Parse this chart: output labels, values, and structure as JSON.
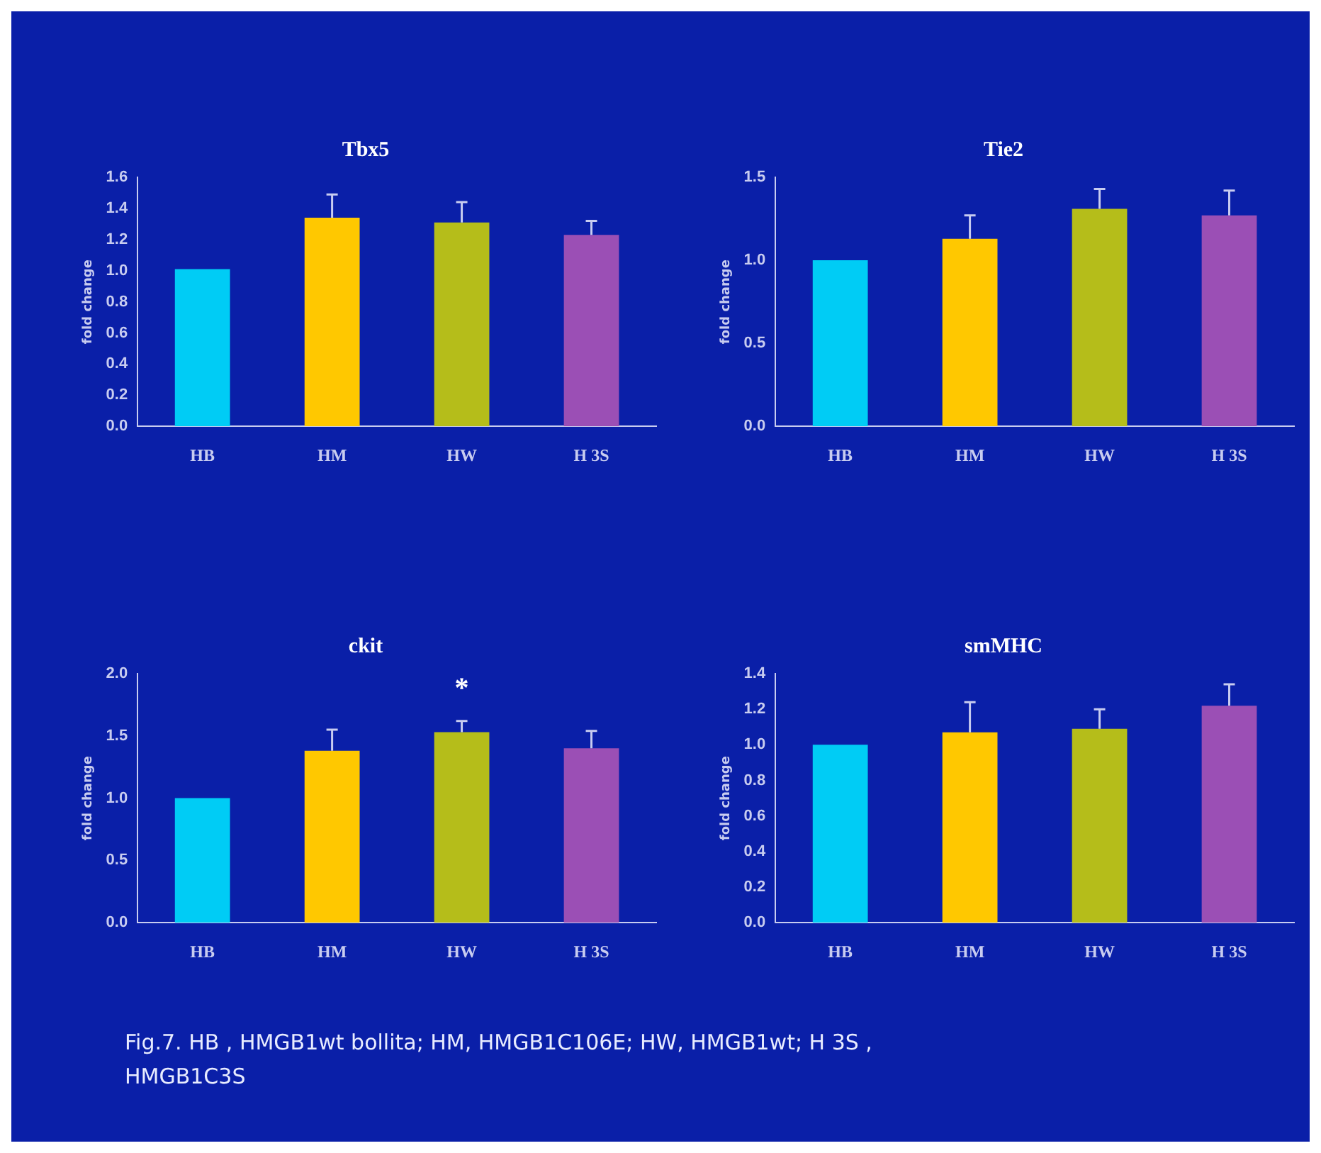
{
  "chart_data": [
    {
      "type": "bar",
      "title": "Tbx5",
      "ylabel": "fold change",
      "categories": [
        "HB",
        "HM",
        "HW",
        "H 3S"
      ],
      "values": [
        1.01,
        1.34,
        1.31,
        1.23
      ],
      "colors": [
        "#00ccf5",
        "#ffc800",
        "#b5bd1a",
        "#9b4fb5"
      ],
      "errors": [
        null,
        [
          1.34,
          1.49
        ],
        [
          1.31,
          1.44
        ],
        [
          1.23,
          1.32
        ]
      ],
      "ylim": [
        0,
        1.6
      ],
      "yticks": [
        {
          "value": 0,
          "label": "0.0"
        },
        0.2,
        0.4,
        0.6,
        0.8,
        {
          "value": 1,
          "label": "1.0"
        },
        1.2,
        1.4,
        1.6
      ],
      "grid": false,
      "legend": false
    },
    {
      "type": "bar",
      "title": "Tie2",
      "ylabel": "fold change",
      "categories": [
        "HB",
        "HM",
        "HW",
        "H 3S"
      ],
      "values": [
        1.0,
        1.13,
        1.31,
        1.27
      ],
      "colors": [
        "#00ccf5",
        "#ffc800",
        "#b5bd1a",
        "#9b4fb5"
      ],
      "errors": [
        null,
        [
          1.13,
          1.27
        ],
        [
          1.31,
          1.43
        ],
        [
          1.27,
          1.42
        ]
      ],
      "ylim": [
        0,
        1.5
      ],
      "yticks": [
        {
          "value": 0,
          "label": "0.0"
        },
        0.5,
        {
          "value": 1,
          "label": "1.0"
        },
        1.5
      ],
      "grid": false,
      "legend": false
    },
    {
      "type": "bar",
      "title": "ckit",
      "ylabel": "fold change",
      "categories": [
        "HB",
        "HM",
        "HW",
        "H 3S"
      ],
      "values": [
        1.0,
        1.38,
        1.53,
        1.4
      ],
      "colors": [
        "#00ccf5",
        "#ffc800",
        "#b5bd1a",
        "#9b4fb5"
      ],
      "errors": [
        null,
        [
          1.38,
          1.55
        ],
        [
          1.53,
          1.62
        ],
        [
          1.4,
          1.54
        ]
      ],
      "ylim": [
        0,
        2.0
      ],
      "yticks": [
        {
          "value": 0,
          "label": "0.0"
        },
        0.5,
        {
          "value": 1,
          "label": "1.0"
        },
        1.5,
        {
          "value": 2,
          "label": "2.0"
        }
      ],
      "annotations": [
        {
          "text": "*",
          "x": "HW",
          "y": 1.62
        }
      ],
      "grid": false,
      "legend": false
    },
    {
      "type": "bar",
      "title": "smMHC",
      "ylabel": "fold change",
      "categories": [
        "HB",
        "HM",
        "HW",
        "H 3S"
      ],
      "values": [
        1.0,
        1.07,
        1.09,
        1.22
      ],
      "colors": [
        "#00ccf5",
        "#ffc800",
        "#b5bd1a",
        "#9b4fb5"
      ],
      "errors": [
        null,
        [
          1.07,
          1.24
        ],
        [
          1.09,
          1.2
        ],
        [
          1.22,
          1.34
        ]
      ],
      "ylim": [
        0,
        1.4
      ],
      "yticks": [
        {
          "value": 0,
          "label": "0.0"
        },
        0.2,
        0.4,
        0.6,
        0.8,
        {
          "value": 1,
          "label": "1.0"
        },
        1.2,
        1.4
      ],
      "annotations": [
        "Fig.7. HB , HMGB1wt bollita; HM, HMGB1C106E; HW, HMGB1wt; H 3S , HMGB1C3S"
      ],
      "grid": false,
      "legend": false
    }
  ]
}
